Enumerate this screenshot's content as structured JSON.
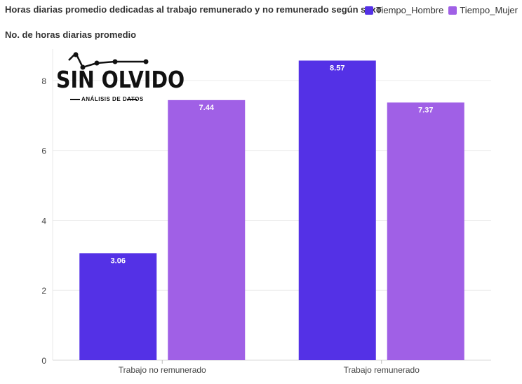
{
  "chart_data": {
    "type": "bar",
    "title": "Horas diarias promedio dedicadas al trabajo remunerado y no remunerado según sexo",
    "ylabel": "No. de horas diarias promedio",
    "xlabel": "",
    "categories": [
      "Trabajo no remunerado",
      "Trabajo remunerado"
    ],
    "series": [
      {
        "name": "Tiempo_Hombre",
        "values": [
          3.06,
          8.57
        ],
        "labels": [
          "3.06",
          "8.57"
        ],
        "color": "#5431e6"
      },
      {
        "name": "Tiempo_Mujer",
        "values": [
          7.44,
          7.37
        ],
        "labels": [
          "7.44",
          "7.37"
        ],
        "color": "#a060e6"
      }
    ],
    "ylim": [
      0,
      8.9
    ],
    "yticks": [
      0,
      2,
      4,
      6,
      8
    ],
    "ytick_labels": [
      "0",
      "2",
      "4",
      "6",
      "8"
    ],
    "grid": true,
    "legend": "top-right"
  },
  "logo": {
    "word": "SIN OLVIDO",
    "subtitle": "ANÁLISIS DE DATOS"
  }
}
